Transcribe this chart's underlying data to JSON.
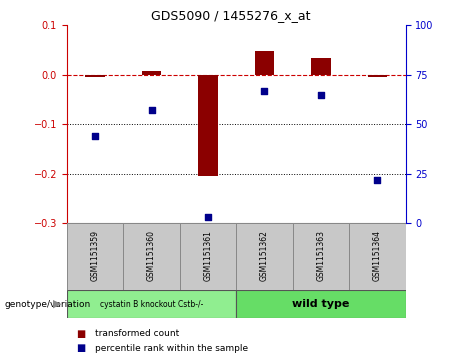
{
  "title": "GDS5090 / 1455276_x_at",
  "samples": [
    "GSM1151359",
    "GSM1151360",
    "GSM1151361",
    "GSM1151362",
    "GSM1151363",
    "GSM1151364"
  ],
  "bar_values": [
    -0.005,
    0.008,
    -0.205,
    0.048,
    0.035,
    -0.005
  ],
  "dot_values": [
    44,
    57,
    3,
    67,
    65,
    22
  ],
  "ylim_left": [
    -0.3,
    0.1
  ],
  "ylim_right": [
    0,
    100
  ],
  "yticks_left": [
    -0.3,
    -0.2,
    -0.1,
    0.0,
    0.1
  ],
  "yticks_right": [
    0,
    25,
    50,
    75,
    100
  ],
  "bar_color": "#8B0000",
  "dot_color": "#00008B",
  "zero_line_color": "#CC0000",
  "dotted_line_color": "#000000",
  "group1_label": "cystatin B knockout Cstb-/-",
  "group2_label": "wild type",
  "group1_indices": [
    0,
    1,
    2
  ],
  "group2_indices": [
    3,
    4,
    5
  ],
  "group1_color": "#90EE90",
  "group2_color": "#66DD66",
  "genotype_label": "genotype/variation",
  "legend_bar_label": "transformed count",
  "legend_dot_label": "percentile rank within the sample",
  "bg_color": "#FFFFFF",
  "plot_bg_color": "#FFFFFF",
  "tick_color_left": "#CC0000",
  "tick_color_right": "#0000CC",
  "bar_width": 0.35,
  "sample_box_color": "#C8C8C8",
  "sample_box_edge_color": "#888888"
}
